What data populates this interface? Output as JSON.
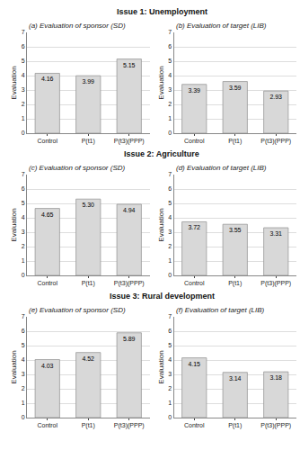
{
  "chart_data": [
    {
      "type": "bar",
      "title": "(a) Evaluation of sponsor (SD)",
      "annotations": [
        "Issue 1: Unemployment"
      ],
      "categories": [
        "Control",
        "P(t1)",
        "P(t3)(PPP)"
      ],
      "values": [
        4.16,
        3.99,
        5.15
      ],
      "value_labels": [
        "4.16",
        "3.99",
        "5.15"
      ],
      "color": "#d8d8d8",
      "ylabel": "Evaluation",
      "ylim": [
        0,
        7
      ],
      "yticks": [
        0,
        1,
        2,
        3,
        4,
        5,
        6,
        7
      ],
      "grid": true,
      "data_labels": true
    },
    {
      "type": "bar",
      "title": "(b) Evaluation of target (LIB)",
      "categories": [
        "Control",
        "P(t1)",
        "P(t3)(PPP)"
      ],
      "values": [
        3.39,
        3.59,
        2.93
      ],
      "value_labels": [
        "3.39",
        "3.59",
        "2.93"
      ],
      "color": "#d8d8d8",
      "ylabel": "Evaluation",
      "ylim": [
        0,
        7
      ],
      "yticks": [
        0,
        1,
        2,
        3,
        4,
        5,
        6,
        7
      ],
      "grid": true,
      "data_labels": true
    },
    {
      "type": "bar",
      "title": "(c) Evaluation of sponsor (SD)",
      "annotations": [
        "Issue 2: Agriculture"
      ],
      "categories": [
        "Control",
        "P(t1)",
        "P(t3)(PPP)"
      ],
      "values": [
        4.65,
        5.3,
        4.94
      ],
      "value_labels": [
        "4.65",
        "5.30",
        "4.94"
      ],
      "color": "#d8d8d8",
      "ylabel": "Evaluation",
      "ylim": [
        0,
        7
      ],
      "yticks": [
        0,
        1,
        2,
        3,
        4,
        5,
        6,
        7
      ],
      "grid": true,
      "data_labels": true
    },
    {
      "type": "bar",
      "title": "(d) Evaluation of target (LIB)",
      "categories": [
        "Control",
        "P(t1)",
        "P(t3)(PPP)"
      ],
      "values": [
        3.72,
        3.55,
        3.31
      ],
      "value_labels": [
        "3.72",
        "3.55",
        "3.31"
      ],
      "color": "#d8d8d8",
      "ylabel": "Evaluation",
      "ylim": [
        0,
        7
      ],
      "yticks": [
        0,
        1,
        2,
        3,
        4,
        5,
        6,
        7
      ],
      "grid": true,
      "data_labels": true
    },
    {
      "type": "bar",
      "title": "(e) Evaluation of sponsor (SD)",
      "annotations": [
        "Issue 3: Rural development"
      ],
      "categories": [
        "Control",
        "P(t1)",
        "P(t3)(PPP)"
      ],
      "values": [
        4.03,
        4.52,
        5.89
      ],
      "value_labels": [
        "4.03",
        "4.52",
        "5.89"
      ],
      "color": "#d8d8d8",
      "ylabel": "Evaluation",
      "ylim": [
        0,
        7
      ],
      "yticks": [
        0,
        1,
        2,
        3,
        4,
        5,
        6,
        7
      ],
      "grid": true,
      "data_labels": true
    },
    {
      "type": "bar",
      "title": "(f) Evaluation of target (LIB)",
      "categories": [
        "Control",
        "P(t1)",
        "P(t3)(PPP)"
      ],
      "values": [
        4.15,
        3.14,
        3.18
      ],
      "value_labels": [
        "4.15",
        "3.14",
        "3.18"
      ],
      "color": "#d8d8d8",
      "ylabel": "Evaluation",
      "ylim": [
        0,
        7
      ],
      "yticks": [
        0,
        1,
        2,
        3,
        4,
        5,
        6,
        7
      ],
      "grid": true,
      "data_labels": true
    }
  ]
}
